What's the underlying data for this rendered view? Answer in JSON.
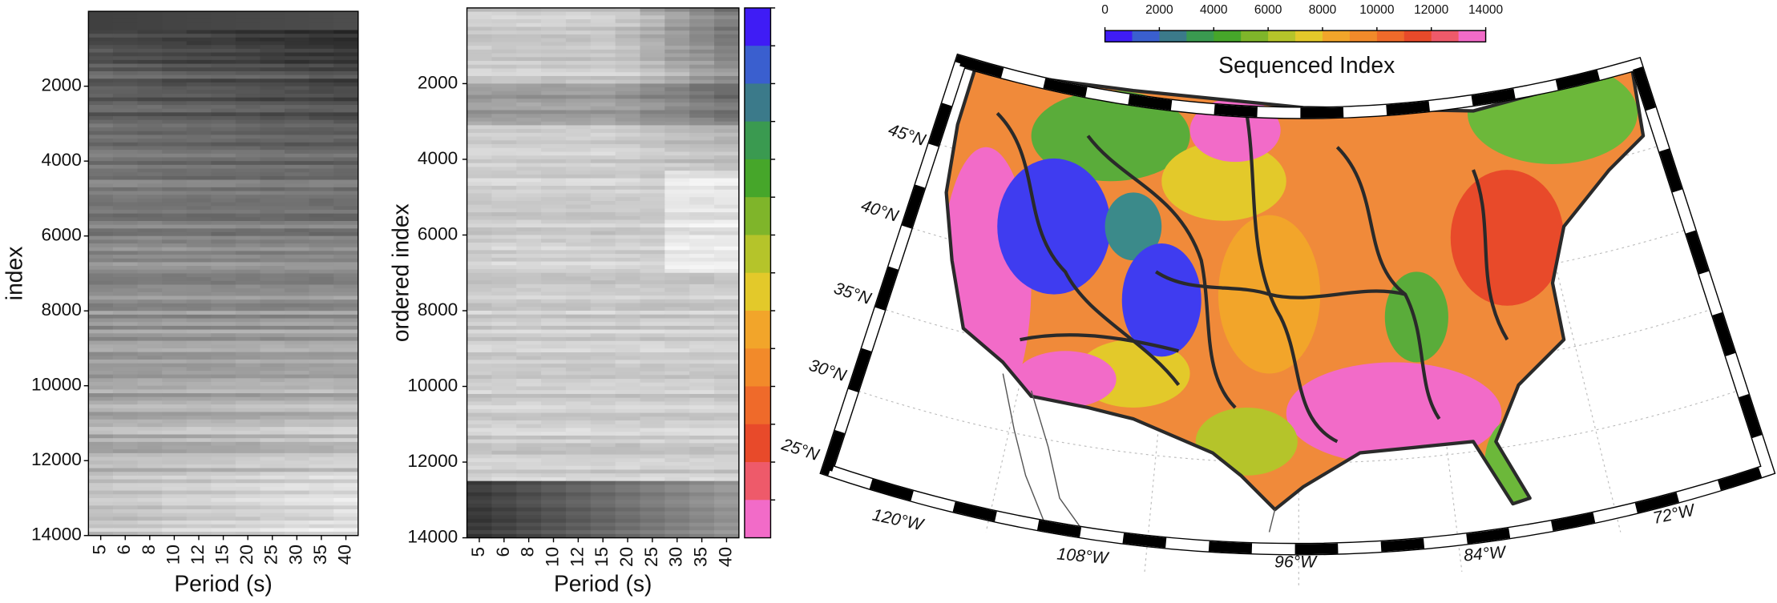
{
  "chart_data": [
    {
      "type": "heatmap",
      "ylabel": "index",
      "xlabel": "Period (s)",
      "categories": [
        "5",
        "6",
        "8",
        "10",
        "12",
        "15",
        "20",
        "25",
        "30",
        "35",
        "40"
      ],
      "ylim": [
        0,
        14000
      ],
      "yticks": [
        2000,
        4000,
        6000,
        8000,
        10000,
        12000,
        14000
      ],
      "y_inverted": true
    },
    {
      "type": "heatmap",
      "ylabel": "ordered index",
      "xlabel": "Period (s)",
      "categories": [
        "5",
        "6",
        "8",
        "10",
        "12",
        "15",
        "20",
        "25",
        "30",
        "35",
        "40"
      ],
      "ylim": [
        0,
        14000
      ],
      "yticks": [
        2000,
        4000,
        6000,
        8000,
        10000,
        12000,
        14000
      ],
      "y_inverted": true,
      "colorbar_colors": [
        "#3f1cf5",
        "#3a5fcf",
        "#3b7a8a",
        "#3a9a50",
        "#46a62a",
        "#7fb52a",
        "#b5c42a",
        "#e3c92a",
        "#f2a52a",
        "#f28a2a",
        "#ef6a2a",
        "#e84a2a",
        "#ee5a6a",
        "#f26bc8"
      ]
    },
    {
      "type": "map",
      "colorbar_title": "Sequenced Index",
      "colorbar_lim": [
        0,
        14000
      ],
      "colorbar_ticks": [
        0,
        2000,
        4000,
        6000,
        8000,
        10000,
        12000,
        14000
      ],
      "colorbar_colors": [
        "#3f1cf5",
        "#3a5fcf",
        "#3b7a8a",
        "#3a9a50",
        "#46a62a",
        "#7fb52a",
        "#b5c42a",
        "#e3c92a",
        "#f2a52a",
        "#f28a2a",
        "#ef6a2a",
        "#e84a2a",
        "#ee5a6a",
        "#f26bc8"
      ],
      "lat_labels": [
        "45°N",
        "40°N",
        "35°N",
        "30°N",
        "25°N"
      ],
      "lon_labels": [
        "120°W",
        "108°W",
        "96°W",
        "84°W",
        "72°W"
      ]
    }
  ]
}
